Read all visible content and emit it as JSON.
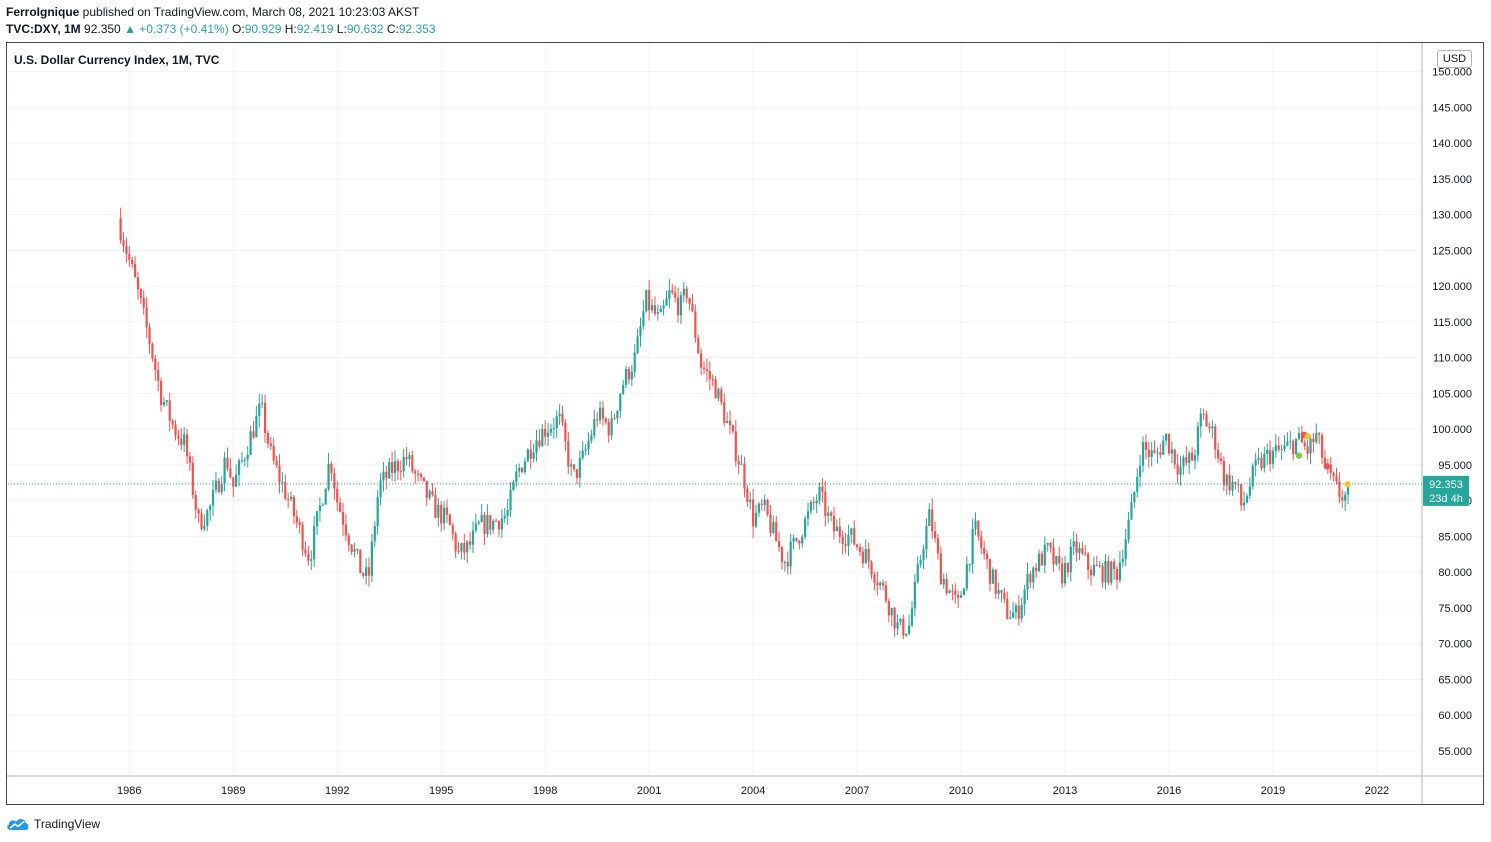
{
  "header": {
    "author": "FerroIgnique",
    "published": " published on TradingView.com, March 08, 2021 10:23:03 AKST",
    "symbol": "TVC:DXY, 1M",
    "last": "92.350",
    "change": "▲ +0.373 (+0.41%)",
    "o_label": "O:",
    "o_value": "90.929",
    "h_label": "H:",
    "h_value": "92.419",
    "l_label": "L:",
    "l_value": "90.632",
    "c_label": "C:",
    "c_value": "92.353"
  },
  "chart_title": "U.S. Dollar Currency Index, 1M, TVC",
  "currency_button": "USD",
  "price_badge": {
    "price": "92.353",
    "countdown": "23d 4h"
  },
  "brand": "TradingView",
  "colors": {
    "up": "#26a69a",
    "down": "#ef5350",
    "grid": "#f0f3fa",
    "axis_text": "#131722"
  },
  "chart_data": {
    "type": "candlestick",
    "title": "U.S. Dollar Currency Index, 1M, TVC",
    "y_ticks": [
      150,
      145,
      140,
      135,
      130,
      125,
      120,
      115,
      110,
      105,
      100,
      95,
      90,
      85,
      80,
      75,
      70,
      65,
      60,
      55
    ],
    "y_tick_labels": [
      "150.000",
      "145.000",
      "140.000",
      "135.000",
      "130.000",
      "125.000",
      "120.000",
      "115.000",
      "110.000",
      "105.000",
      "100.000",
      "95.000",
      "90.000",
      "85.000",
      "80.000",
      "75.000",
      "70.000",
      "65.000",
      "60.000",
      "55.000"
    ],
    "x_ticks": [
      "1986",
      "1989",
      "1992",
      "1995",
      "1998",
      "2001",
      "2004",
      "2007",
      "2010",
      "2013",
      "2016",
      "2019",
      "2022"
    ],
    "ylim": [
      51.5,
      154
    ],
    "xlim": [
      1982.5,
      2023.3
    ],
    "last_price": 92.353,
    "monthly_close_path": [
      [
        1985.75,
        128.0
      ],
      [
        1986.2,
        120.0
      ],
      [
        1986.6,
        112.0
      ],
      [
        1986.9,
        105.0
      ],
      [
        1987.3,
        100.0
      ],
      [
        1987.6,
        98.0
      ],
      [
        1988.0,
        87.0
      ],
      [
        1988.3,
        88.5
      ],
      [
        1988.8,
        96.0
      ],
      [
        1989.0,
        92.0
      ],
      [
        1989.5,
        99.0
      ],
      [
        1989.8,
        103.0
      ],
      [
        1990.1,
        96.0
      ],
      [
        1990.6,
        90.0
      ],
      [
        1990.9,
        86.0
      ],
      [
        1991.2,
        82.0
      ],
      [
        1991.5,
        89.0
      ],
      [
        1991.8,
        96.0
      ],
      [
        1992.0,
        90.0
      ],
      [
        1992.3,
        85.5
      ],
      [
        1992.7,
        80.0
      ],
      [
        1992.9,
        79.0
      ],
      [
        1993.2,
        92.0
      ],
      [
        1993.6,
        94.5
      ],
      [
        1994.0,
        96.0
      ],
      [
        1994.3,
        93.0
      ],
      [
        1994.8,
        89.0
      ],
      [
        1995.2,
        87.0
      ],
      [
        1995.5,
        82.5
      ],
      [
        1995.8,
        83.5
      ],
      [
        1996.1,
        86.5
      ],
      [
        1996.5,
        87.0
      ],
      [
        1996.9,
        88.0
      ],
      [
        1997.2,
        94.0
      ],
      [
        1997.7,
        98.5
      ],
      [
        1998.0,
        100.0
      ],
      [
        1998.4,
        101.5
      ],
      [
        1998.8,
        93.0
      ],
      [
        1999.1,
        96.0
      ],
      [
        1999.5,
        102.0
      ],
      [
        1999.9,
        100.0
      ],
      [
        2000.2,
        106.0
      ],
      [
        2000.6,
        110.0
      ],
      [
        2000.9,
        118.0
      ],
      [
        2001.3,
        115.0
      ],
      [
        2001.6,
        119.0
      ],
      [
        2001.9,
        117.0
      ],
      [
        2002.1,
        119.5
      ],
      [
        2002.5,
        109.0
      ],
      [
        2002.9,
        106.0
      ],
      [
        2003.3,
        100.0
      ],
      [
        2003.7,
        94.0
      ],
      [
        2004.0,
        87.5
      ],
      [
        2004.3,
        89.0
      ],
      [
        2004.9,
        81.5
      ],
      [
        2005.2,
        84.0
      ],
      [
        2005.7,
        89.0
      ],
      [
        2005.9,
        91.0
      ],
      [
        2006.3,
        86.0
      ],
      [
        2006.8,
        85.0
      ],
      [
        2007.3,
        82.0
      ],
      [
        2007.8,
        77.0
      ],
      [
        2008.2,
        72.0
      ],
      [
        2008.5,
        72.5
      ],
      [
        2008.9,
        84.0
      ],
      [
        2009.1,
        88.0
      ],
      [
        2009.4,
        80.0
      ],
      [
        2009.9,
        75.0
      ],
      [
        2010.4,
        86.0
      ],
      [
        2010.9,
        79.0
      ],
      [
        2011.3,
        74.5
      ],
      [
        2011.6,
        74.0
      ],
      [
        2012.0,
        80.0
      ],
      [
        2012.5,
        83.0
      ],
      [
        2012.9,
        79.5
      ],
      [
        2013.3,
        83.5
      ],
      [
        2013.7,
        80.5
      ],
      [
        2014.2,
        80.0
      ],
      [
        2014.5,
        80.0
      ],
      [
        2014.9,
        88.0
      ],
      [
        2015.2,
        97.5
      ],
      [
        2015.6,
        96.0
      ],
      [
        2015.9,
        99.0
      ],
      [
        2016.3,
        94.5
      ],
      [
        2016.7,
        96.0
      ],
      [
        2016.95,
        102.0
      ],
      [
        2017.3,
        99.0
      ],
      [
        2017.6,
        93.0
      ],
      [
        2017.95,
        92.0
      ],
      [
        2018.1,
        89.0
      ],
      [
        2018.5,
        94.5
      ],
      [
        2018.9,
        96.5
      ],
      [
        2019.3,
        97.0
      ],
      [
        2019.7,
        98.5
      ],
      [
        2020.0,
        97.0
      ],
      [
        2020.25,
        99.0
      ],
      [
        2020.6,
        93.5
      ],
      [
        2020.9,
        91.0
      ],
      [
        2021.1,
        90.5
      ],
      [
        2021.2,
        92.35
      ]
    ]
  }
}
